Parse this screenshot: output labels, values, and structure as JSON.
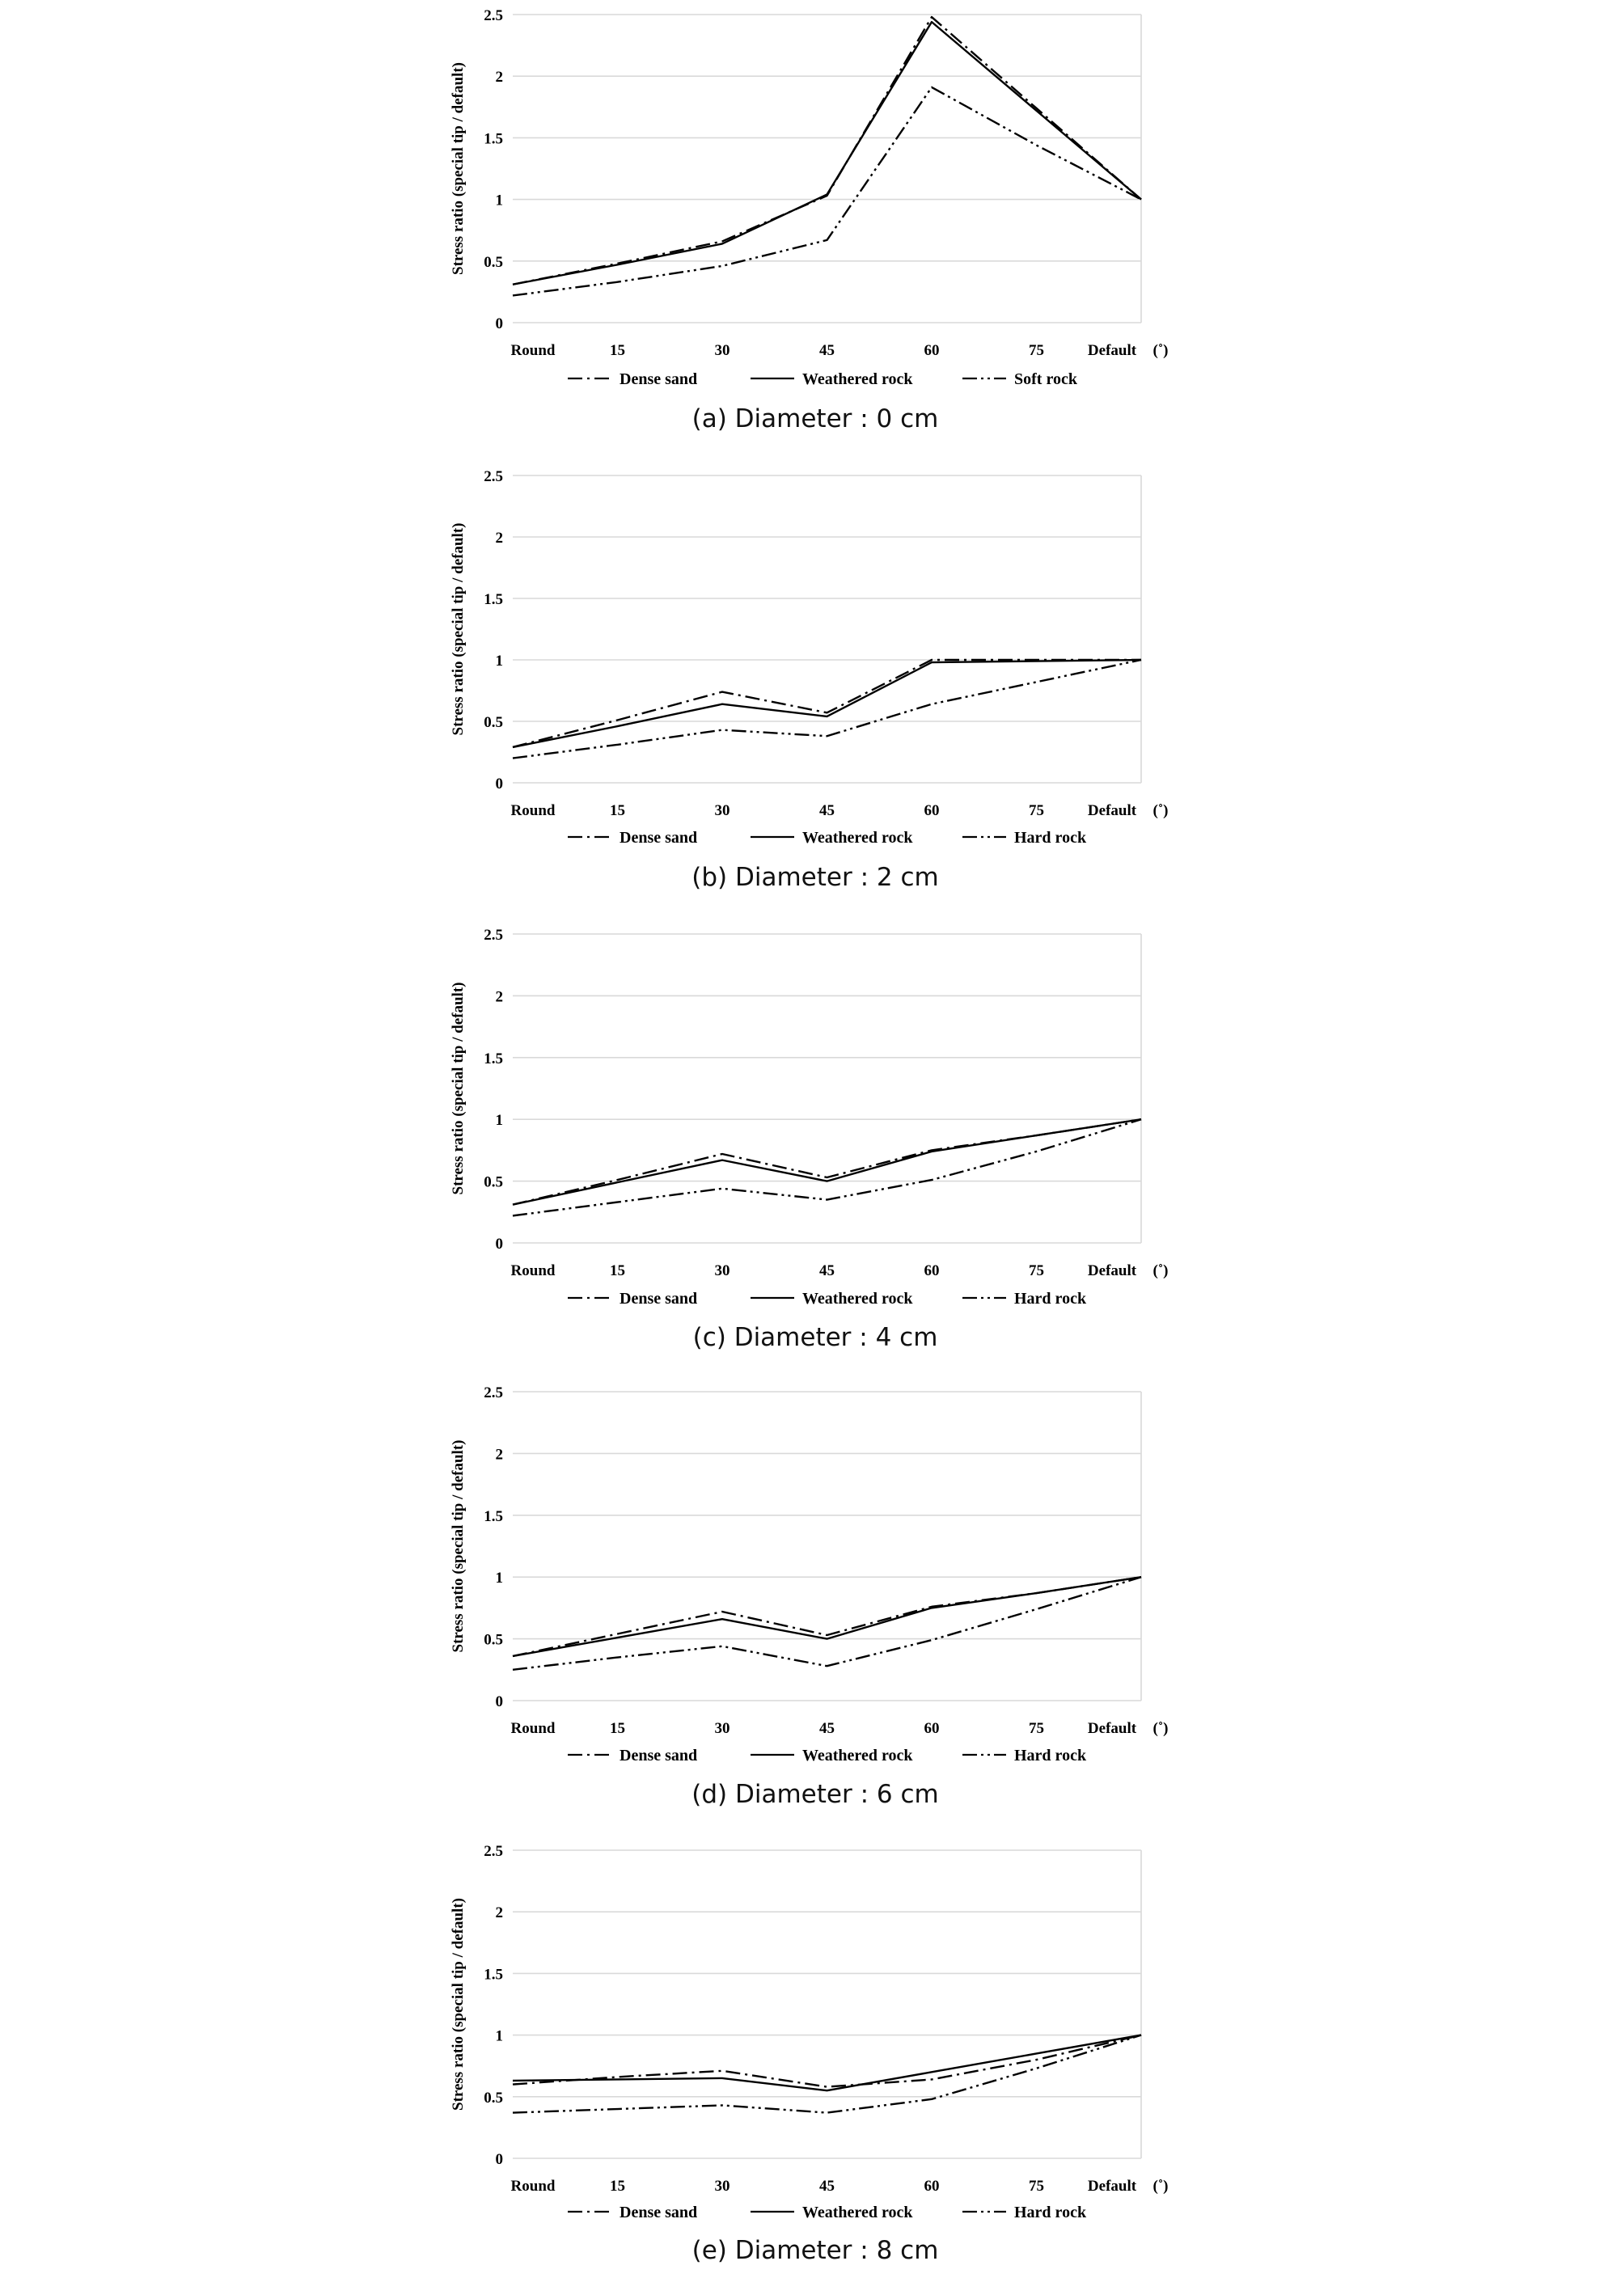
{
  "chart_data": [
    {
      "type": "line",
      "caption": "(a) Diameter : 0 cm",
      "ylabel": "Stress ratio (special tip / default)",
      "x_unit": "(˚)",
      "categories": [
        "Round",
        "15",
        "30",
        "45",
        "60",
        "75",
        "Default"
      ],
      "y_ticks": [
        "0",
        "0.5",
        "1",
        "1.5",
        "2",
        "2.5"
      ],
      "ylim": [
        0,
        2.5
      ],
      "grid": true,
      "legend_position": "bottom",
      "series": [
        {
          "name": "Dense sand",
          "style": "dashdot",
          "values": [
            0.31,
            0.48,
            0.66,
            1.03,
            2.48,
            1.74,
            1.0
          ]
        },
        {
          "name": "Weathered rock",
          "style": "solid",
          "values": [
            0.31,
            0.47,
            0.64,
            1.04,
            2.44,
            1.72,
            1.0
          ]
        },
        {
          "name": "Soft rock",
          "style": "dashdotdot",
          "values": [
            0.22,
            0.33,
            0.46,
            0.67,
            1.91,
            1.44,
            1.0
          ]
        }
      ]
    },
    {
      "type": "line",
      "caption": "(b) Diameter : 2 cm",
      "ylabel": "Stress ratio (special tip / default)",
      "x_unit": "(˚)",
      "categories": [
        "Round",
        "15",
        "30",
        "45",
        "60",
        "75",
        "Default"
      ],
      "y_ticks": [
        "0",
        "0.5",
        "1",
        "1.5",
        "2",
        "2.5"
      ],
      "ylim": [
        0,
        2.5
      ],
      "grid": true,
      "legend_position": "bottom",
      "series": [
        {
          "name": "Dense sand",
          "style": "dashdot",
          "values": [
            0.29,
            0.51,
            0.74,
            0.57,
            1.0,
            1.0,
            1.0
          ]
        },
        {
          "name": "Weathered rock",
          "style": "solid",
          "values": [
            0.29,
            0.46,
            0.64,
            0.54,
            0.98,
            0.99,
            1.0
          ]
        },
        {
          "name": "Hard rock",
          "style": "dashdotdot",
          "values": [
            0.2,
            0.31,
            0.43,
            0.38,
            0.64,
            0.82,
            1.0
          ]
        }
      ]
    },
    {
      "type": "line",
      "caption": "(c) Diameter : 4 cm",
      "ylabel": "Stress ratio (special tip / default)",
      "x_unit": "(˚)",
      "categories": [
        "Round",
        "15",
        "30",
        "45",
        "60",
        "75",
        "Default"
      ],
      "y_ticks": [
        "0",
        "0.5",
        "1",
        "1.5",
        "2",
        "2.5"
      ],
      "ylim": [
        0,
        2.5
      ],
      "grid": true,
      "legend_position": "bottom",
      "series": [
        {
          "name": "Dense sand",
          "style": "dashdot",
          "values": [
            0.31,
            0.51,
            0.72,
            0.53,
            0.75,
            0.87,
            1.0
          ]
        },
        {
          "name": "Weathered rock",
          "style": "solid",
          "values": [
            0.31,
            0.49,
            0.67,
            0.5,
            0.74,
            0.87,
            1.0
          ]
        },
        {
          "name": "Hard rock",
          "style": "dashdotdot",
          "values": [
            0.22,
            0.33,
            0.44,
            0.35,
            0.51,
            0.74,
            1.0
          ]
        }
      ]
    },
    {
      "type": "line",
      "caption": "(d) Diameter : 6 cm",
      "ylabel": "Stress ratio (special tip / default)",
      "x_unit": "(˚)",
      "categories": [
        "Round",
        "15",
        "30",
        "45",
        "60",
        "75",
        "Default"
      ],
      "y_ticks": [
        "0",
        "0.5",
        "1",
        "1.5",
        "2",
        "2.5"
      ],
      "ylim": [
        0,
        2.5
      ],
      "grid": true,
      "legend_position": "bottom",
      "series": [
        {
          "name": "Dense sand",
          "style": "dashdot",
          "values": [
            0.36,
            0.54,
            0.72,
            0.53,
            0.76,
            0.87,
            1.0
          ]
        },
        {
          "name": "Weathered rock",
          "style": "solid",
          "values": [
            0.36,
            0.51,
            0.66,
            0.5,
            0.75,
            0.87,
            1.0
          ]
        },
        {
          "name": "Hard rock",
          "style": "dashdotdot",
          "values": [
            0.25,
            0.35,
            0.44,
            0.28,
            0.49,
            0.74,
            1.0
          ]
        }
      ]
    },
    {
      "type": "line",
      "caption": "(e) Diameter : 8 cm",
      "ylabel": "Stress ratio (special tip / default)",
      "x_unit": "(˚)",
      "categories": [
        "Round",
        "15",
        "30",
        "45",
        "60",
        "75",
        "Default"
      ],
      "y_ticks": [
        "0",
        "0.5",
        "1",
        "1.5",
        "2",
        "2.5"
      ],
      "ylim": [
        0,
        2.5
      ],
      "grid": true,
      "legend_position": "bottom",
      "series": [
        {
          "name": "Dense sand",
          "style": "dashdot",
          "values": [
            0.6,
            0.66,
            0.71,
            0.58,
            0.64,
            0.8,
            1.0
          ]
        },
        {
          "name": "Weathered rock",
          "style": "solid",
          "values": [
            0.63,
            0.64,
            0.65,
            0.55,
            0.7,
            0.85,
            1.0
          ]
        },
        {
          "name": "Hard rock",
          "style": "dashdotdot",
          "values": [
            0.37,
            0.4,
            0.43,
            0.37,
            0.48,
            0.73,
            1.0
          ]
        }
      ]
    }
  ]
}
